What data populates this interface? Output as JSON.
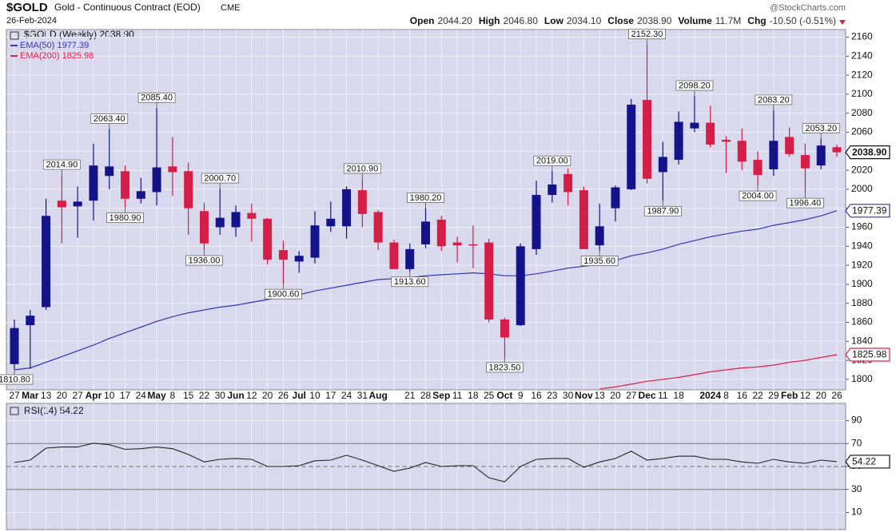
{
  "chart_data": {
    "type": "candlestick",
    "title": "$GOLD",
    "subtitle": "Gold - Continuous Contract (EOD)",
    "exchange": "CME",
    "date": "26-Feb-2024",
    "source": "@StockCharts.com",
    "stats": [
      {
        "label": "Open",
        "value": "2044.20"
      },
      {
        "label": "High",
        "value": "2046.80"
      },
      {
        "label": "Low",
        "value": "2034.10"
      },
      {
        "label": "Close",
        "value": "2038.90"
      },
      {
        "label": "Volume",
        "value": "11.7M"
      },
      {
        "label": "Chg",
        "value": "-10.50 (-0.51%)"
      }
    ],
    "legend_title": "$GOLD (Weekly) 2038.90",
    "categories": [
      "27",
      "Mar",
      "13",
      "20",
      "27",
      "Apr",
      "10",
      "17",
      "24",
      "May",
      "8",
      "15",
      "22",
      "30",
      "Jun",
      "12",
      "20",
      "26",
      "Jul",
      "10",
      "17",
      "24",
      "31",
      "Aug",
      null,
      "21",
      "28",
      "Sep",
      "11",
      "18",
      "25",
      "Oct",
      "9",
      "16",
      "23",
      "30",
      "Nov",
      "13",
      "20",
      "27",
      "Dec",
      "11",
      "18",
      null,
      "2024",
      "8",
      "16",
      "22",
      "29",
      "Feb",
      "12",
      "20",
      "26"
    ],
    "open": [
      1816,
      1857,
      1876,
      1988,
      1982,
      1988,
      2014,
      2019,
      1990,
      1997,
      2024,
      2019,
      1977,
      1960,
      1960,
      1975,
      1969,
      1936,
      1924,
      1928,
      1961,
      1961,
      1999,
      1976,
      1944,
      1916,
      1942,
      1968,
      1944,
      1942,
      1944,
      1863,
      1857,
      1937,
      1994,
      2016,
      1999,
      1941,
      1980,
      2000,
      2094,
      2018,
      2031,
      2064,
      2070,
      2052,
      2051,
      2031,
      2021,
      2055,
      2036,
      2025,
      2044.2
    ],
    "high": [
      1863,
      1873,
      1990,
      2014.9,
      2003,
      2048,
      2063.4,
      2025,
      2012,
      2085.4,
      2055,
      2028,
      1986,
      2000.7,
      1983,
      1985,
      1970,
      1946,
      1935,
      1977,
      1987,
      2003,
      2010.9,
      1978,
      1947,
      1943,
      1980.2,
      1972,
      1950,
      1962,
      1948,
      1865,
      1943,
      2009,
      2019,
      2022,
      2003,
      1985,
      2004,
      2095,
      2152.3,
      2050,
      2082,
      2098.2,
      2088,
      2056,
      2064,
      2040,
      2083.2,
      2065,
      2048,
      2053.2,
      2046.8
    ],
    "low": [
      1810.8,
      1811,
      1873,
      1943,
      1949,
      1967,
      2000,
      1980.9,
      1985,
      1983,
      1993,
      1952,
      1936,
      1952,
      1950,
      1945,
      1921,
      1900.6,
      1912,
      1922,
      1955,
      1948,
      1960,
      1936,
      1917,
      1913.6,
      1938,
      1935,
      1923,
      1917,
      1860,
      1823.5,
      1856,
      1931,
      1986,
      1983,
      1937,
      1935.6,
      1966,
      1999,
      2006,
      1987.9,
      2026,
      2060,
      2044,
      2017,
      2020,
      2004,
      2014,
      2034,
      1996.4,
      2021,
      2034.1
    ],
    "close": [
      1854,
      1867,
      1972,
      1981,
      1987,
      2025,
      2024,
      1990,
      1998,
      2023,
      2018,
      1980,
      1943,
      1970,
      1976,
      1969,
      1926,
      1926,
      1930,
      1962,
      1969,
      2000,
      1974,
      1944,
      1916,
      1937,
      1966,
      1940,
      1941,
      1941,
      1863,
      1844,
      1940,
      1994,
      2005,
      1997,
      1937,
      1961,
      2002,
      2089,
      2011,
      2034,
      2071,
      2070,
      2047,
      2050,
      2029,
      2015,
      2051,
      2037,
      2022,
      2046,
      2038.9
    ],
    "high_labels": [
      null,
      null,
      null,
      "2014.90",
      null,
      null,
      "2063.40",
      null,
      null,
      "2085.40",
      null,
      null,
      null,
      "2000.70",
      null,
      null,
      null,
      null,
      null,
      null,
      null,
      null,
      "2010.90",
      null,
      null,
      null,
      "1980.20",
      null,
      null,
      null,
      null,
      null,
      null,
      null,
      "2019.00",
      null,
      null,
      null,
      null,
      null,
      "2152.30",
      null,
      null,
      "2098.20",
      null,
      null,
      null,
      null,
      "2083.20",
      null,
      null,
      "2053.20",
      null
    ],
    "low_labels": [
      "1810.80",
      null,
      null,
      null,
      null,
      null,
      null,
      "1980.90",
      null,
      null,
      null,
      null,
      "1936.00",
      null,
      null,
      null,
      null,
      "1900.60",
      null,
      null,
      null,
      null,
      null,
      null,
      null,
      "1913.60",
      null,
      null,
      null,
      null,
      null,
      "1823.50",
      null,
      null,
      null,
      null,
      null,
      "1935.60",
      null,
      null,
      null,
      "1987.90",
      null,
      null,
      null,
      null,
      null,
      "2004.00",
      null,
      null,
      "1996.40",
      null,
      null
    ],
    "up_color": "#14148a",
    "down_color": "#d41e48",
    "last_label": "2038.90",
    "ylim": [
      1789,
      2168
    ],
    "yticks": [
      1800,
      1820,
      1840,
      1860,
      1880,
      1900,
      1920,
      1940,
      1960,
      1980,
      2000,
      2020,
      2040,
      2060,
      2080,
      2100,
      2120,
      2140,
      2160
    ],
    "grid": true,
    "series": [
      {
        "name": "EMA(50) 1977.39",
        "color": "#3434b4",
        "last_label": "1977.39",
        "values": [
          1810,
          1812,
          1818,
          1824,
          1830,
          1836,
          1843,
          1849,
          1855,
          1861,
          1866,
          1870,
          1873,
          1876,
          1878,
          1881,
          1884,
          1887,
          1889,
          1893,
          1896,
          1899,
          1902,
          1905,
          1906,
          1907,
          1909,
          1910,
          1911,
          1912,
          1911,
          1909,
          1909,
          1911,
          1914,
          1917,
          1919,
          1921,
          1925,
          1930,
          1933,
          1937,
          1942,
          1946,
          1950,
          1953,
          1956,
          1958,
          1962,
          1965,
          1968,
          1972,
          1977.39
        ]
      },
      {
        "name": "EMA(200) 1825.98",
        "color": "#e0204a",
        "last_label": "1825.98",
        "values": [
          null,
          null,
          null,
          null,
          null,
          null,
          null,
          null,
          null,
          null,
          null,
          null,
          null,
          null,
          null,
          null,
          null,
          null,
          null,
          null,
          null,
          null,
          null,
          null,
          null,
          null,
          null,
          null,
          null,
          null,
          null,
          null,
          null,
          null,
          null,
          null,
          null,
          1790,
          1792,
          1795,
          1798,
          1800,
          1802,
          1805,
          1808,
          1810,
          1812,
          1813,
          1815,
          1818,
          1820,
          1823,
          1825.98
        ]
      }
    ],
    "rsi": {
      "name": "RSI(14) 54.22",
      "color": "#222222",
      "last_label": "54.22",
      "values": [
        53.5,
        55.6,
        66,
        67,
        67,
        70.3,
        69,
        65,
        65.5,
        67,
        65.5,
        60.5,
        54,
        56.3,
        57,
        56.3,
        50,
        50,
        50.7,
        55,
        55.6,
        59.8,
        55.6,
        50.7,
        45.8,
        48.6,
        53.5,
        50,
        50.7,
        50.7,
        40.2,
        36.7,
        50,
        56.3,
        57,
        57,
        49.3,
        54,
        57,
        63.3,
        55.6,
        57,
        59,
        59,
        56.3,
        56.3,
        54,
        52.8,
        56.3,
        54,
        52.8,
        55.6,
        54.22
      ],
      "ylim": [
        -5,
        105
      ],
      "yticks": [
        10,
        30,
        50,
        70,
        90
      ],
      "bands": [
        30,
        70
      ]
    }
  }
}
